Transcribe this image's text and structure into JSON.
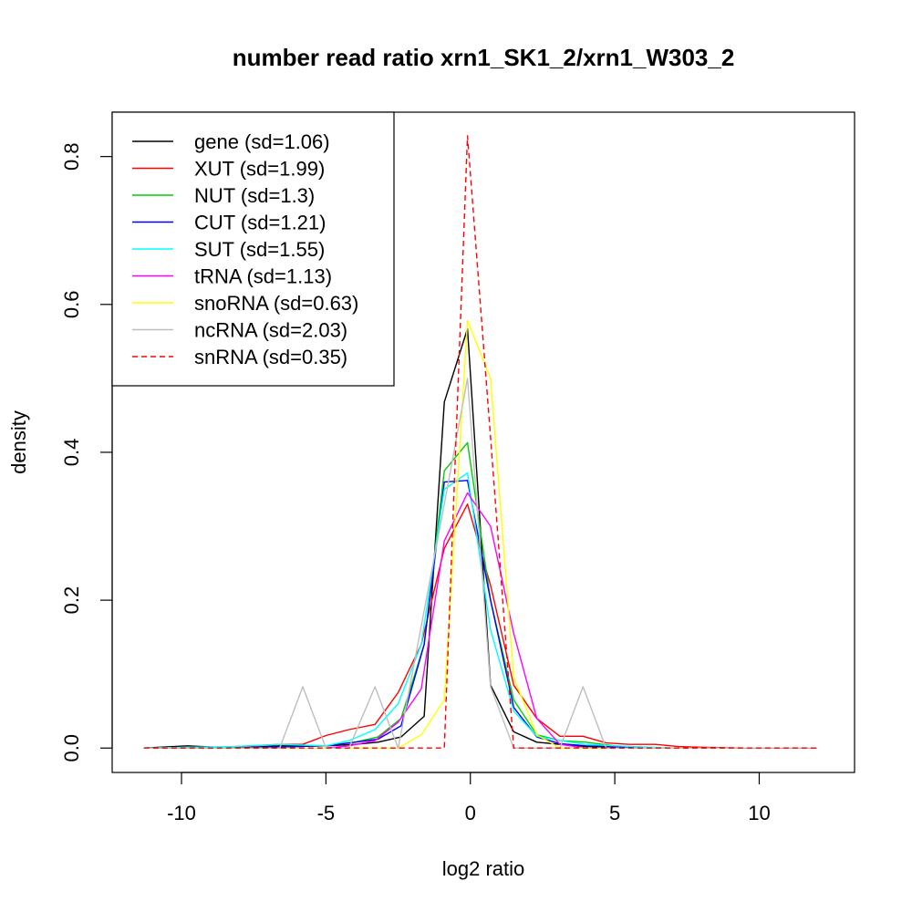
{
  "chart_data": {
    "type": "line",
    "title": "number read ratio xrn1_SK1_2/xrn1_W303_2",
    "xlabel": "log2 ratio",
    "ylabel": "density",
    "xlim": [
      -12.4,
      13.3
    ],
    "ylim": [
      -0.033,
      0.86
    ],
    "xticks": [
      -10,
      -5,
      0,
      5,
      10
    ],
    "xtick_labels": [
      "-10",
      "-5",
      "0",
      "5",
      "10"
    ],
    "yticks": [
      0.0,
      0.2,
      0.4,
      0.6,
      0.8
    ],
    "ytick_labels": [
      "0.0",
      "0.2",
      "0.4",
      "0.6",
      "0.8"
    ],
    "grid": false,
    "legend_position": "top-left",
    "series": [
      {
        "name": "gene (sd=1.06)",
        "color": "#000000",
        "dash": "solid",
        "x": [
          -11.3,
          -9.8,
          -8.2,
          -6.6,
          -5.0,
          -4.0,
          -3.2,
          -2.4,
          -1.6,
          -0.9,
          -0.1,
          0.7,
          1.5,
          2.3,
          3.1,
          4.0,
          5.0,
          6.0
        ],
        "y": [
          0,
          0.003,
          0,
          0.003,
          0.003,
          0.005,
          0.008,
          0.015,
          0.043,
          0.468,
          0.567,
          0.085,
          0.022,
          0.008,
          0.005,
          0.002,
          0.001,
          0
        ]
      },
      {
        "name": "XUT (sd=1.99)",
        "color": "#ff0000",
        "dash": "solid",
        "x": [
          -11.3,
          -9.0,
          -6.6,
          -5.8,
          -5.0,
          -4.2,
          -3.3,
          -2.5,
          -1.7,
          -0.9,
          -0.1,
          0.7,
          1.5,
          2.3,
          3.1,
          3.9,
          4.7,
          5.5,
          6.4,
          7.2,
          8.1,
          9.5,
          12.0
        ],
        "y": [
          0,
          0,
          0.005,
          0.005,
          0.017,
          0.025,
          0.032,
          0.075,
          0.14,
          0.27,
          0.33,
          0.22,
          0.085,
          0.04,
          0.016,
          0.016,
          0.007,
          0.005,
          0.005,
          0.002,
          0.001,
          0,
          0
        ]
      },
      {
        "name": "NUT (sd=1.3)",
        "color": "#00cd00",
        "dash": "solid",
        "x": [
          -11.3,
          -8.2,
          -5.0,
          -4.0,
          -3.2,
          -2.4,
          -1.6,
          -0.9,
          -0.1,
          0.7,
          1.5,
          2.3,
          3.1,
          4.0,
          5.0,
          6.4
        ],
        "y": [
          0,
          0,
          0.003,
          0.008,
          0.015,
          0.04,
          0.14,
          0.375,
          0.413,
          0.2,
          0.065,
          0.018,
          0.01,
          0.008,
          0.003,
          0
        ]
      },
      {
        "name": "CUT (sd=1.21)",
        "color": "#0000ff",
        "dash": "solid",
        "x": [
          -11.3,
          -8.2,
          -5.0,
          -4.0,
          -3.2,
          -2.4,
          -1.6,
          -0.9,
          -0.1,
          0.7,
          1.5,
          2.3,
          3.1,
          4.0,
          5.0,
          6.0
        ],
        "y": [
          0,
          0,
          0.003,
          0.008,
          0.012,
          0.03,
          0.14,
          0.36,
          0.362,
          0.2,
          0.055,
          0.015,
          0.006,
          0.003,
          0.002,
          0
        ]
      },
      {
        "name": "SUT (sd=1.55)",
        "color": "#00ffff",
        "dash": "solid",
        "x": [
          -11.3,
          -8.2,
          -6.6,
          -5.0,
          -4.2,
          -3.3,
          -2.5,
          -1.7,
          -0.9,
          -0.1,
          0.7,
          1.5,
          2.3,
          3.1,
          4.0,
          5.0,
          7.0
        ],
        "y": [
          0,
          0.002,
          0.005,
          0.003,
          0.01,
          0.025,
          0.06,
          0.14,
          0.35,
          0.372,
          0.16,
          0.05,
          0.016,
          0.01,
          0.005,
          0.003,
          0
        ]
      },
      {
        "name": "tRNA (sd=1.13)",
        "color": "#ff00ff",
        "dash": "solid",
        "x": [
          -11.3,
          -5.0,
          -4.2,
          -3.3,
          -2.5,
          -1.7,
          -0.9,
          -0.1,
          0.7,
          1.5,
          2.3,
          3.1,
          4.0,
          5.0
        ],
        "y": [
          0,
          0,
          0.003,
          0.01,
          0.035,
          0.08,
          0.28,
          0.345,
          0.3,
          0.155,
          0.04,
          0.005,
          0,
          0
        ]
      },
      {
        "name": "snoRNA (sd=0.63)",
        "color": "#ffff00",
        "dash": "solid",
        "x": [
          -11.3,
          -3.3,
          -2.5,
          -1.7,
          -0.9,
          -0.1,
          0.7,
          1.5,
          2.3,
          3.1,
          5.0
        ],
        "y": [
          0,
          0,
          0,
          0.018,
          0.065,
          0.578,
          0.5,
          0.095,
          0.018,
          0,
          0
        ]
      },
      {
        "name": "ncRNA (sd=2.03)",
        "color": "#bebebe",
        "dash": "solid",
        "x": [
          -11.3,
          -6.6,
          -5.8,
          -5.0,
          -4.2,
          -3.3,
          -2.5,
          -1.7,
          -0.9,
          -0.1,
          0.7,
          1.5,
          2.3,
          3.1,
          3.9,
          4.7,
          5.5,
          12.0
        ],
        "y": [
          0,
          0,
          0.083,
          0,
          0,
          0.083,
          0,
          0.165,
          0.33,
          0.5,
          0.083,
          0,
          0,
          0,
          0.083,
          0,
          0,
          0
        ]
      },
      {
        "name": "snRNA (sd=0.35)",
        "color": "#ff0000",
        "dash": "dashed",
        "x": [
          -11.3,
          -1.7,
          -0.9,
          -0.1,
          0.7,
          1.5,
          2.3,
          12.0
        ],
        "y": [
          0,
          0,
          0,
          0.828,
          0.42,
          0,
          0,
          0
        ]
      }
    ]
  }
}
